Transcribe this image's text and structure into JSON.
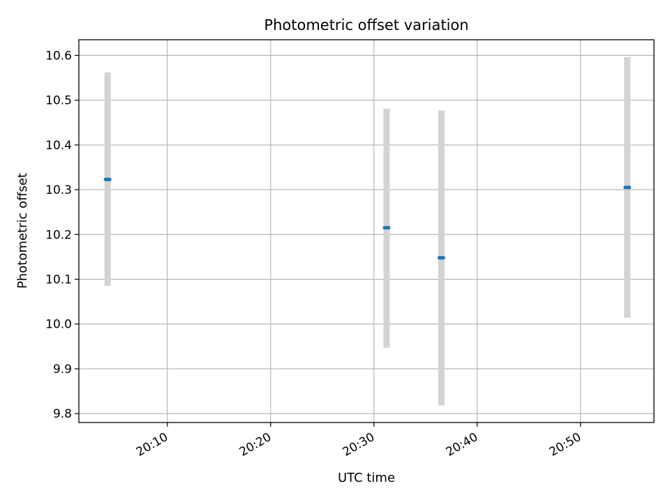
{
  "chart_data": {
    "type": "scatter",
    "title": "Photometric offset variation",
    "xlabel": "UTC time",
    "ylabel": "Photometric offset",
    "grid": true,
    "x_ticks": [
      "20:10",
      "20:20",
      "20:30",
      "20:40",
      "20:50"
    ],
    "y_ticks": [
      "9.8",
      "9.9",
      "10.0",
      "10.1",
      "10.2",
      "10.3",
      "10.4",
      "10.5",
      "10.6"
    ],
    "xlim": [
      "20:01:26",
      "20:57:07"
    ],
    "ylim": [
      9.78,
      10.635
    ],
    "series": [
      {
        "points": [
          {
            "x": "20:04:13",
            "y": 10.323,
            "yerr_low": 10.085,
            "yerr_high": 10.562
          },
          {
            "x": "20:31:14",
            "y": 10.215,
            "yerr_low": 9.947,
            "yerr_high": 10.481
          },
          {
            "x": "20:36:32",
            "y": 10.148,
            "yerr_low": 9.818,
            "yerr_high": 10.477
          },
          {
            "x": "20:54:32",
            "y": 10.305,
            "yerr_low": 10.014,
            "yerr_high": 10.596
          }
        ],
        "marker_color": "#1f77b4",
        "errorbar_color": "#d3d3d3"
      }
    ]
  }
}
